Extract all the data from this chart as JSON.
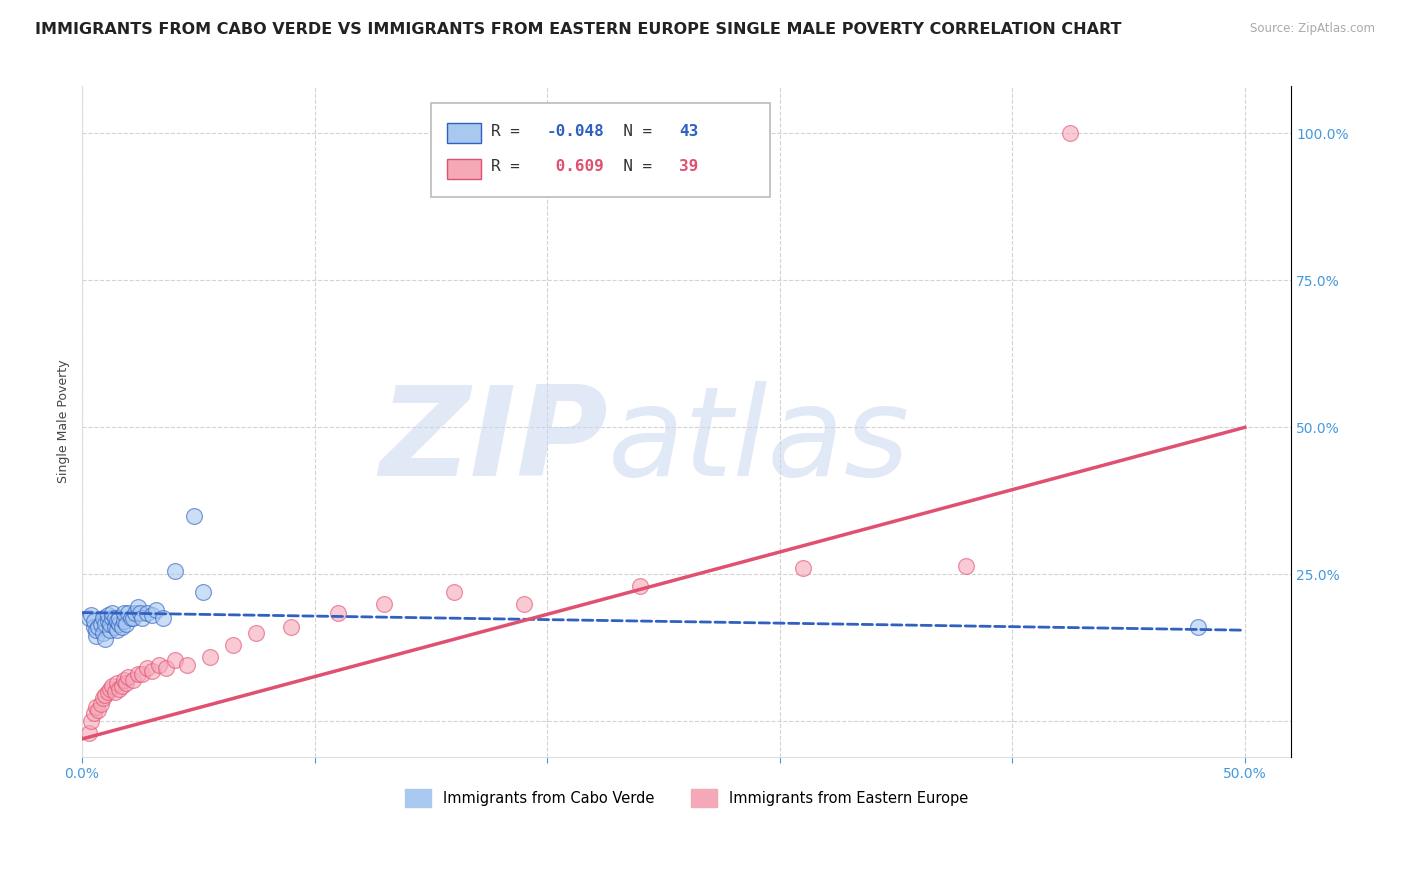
{
  "title": "IMMIGRANTS FROM CABO VERDE VS IMMIGRANTS FROM EASTERN EUROPE SINGLE MALE POVERTY CORRELATION CHART",
  "source": "Source: ZipAtlas.com",
  "ylabel": "Single Male Poverty",
  "xlim": [
    0.0,
    0.52
  ],
  "ylim": [
    -0.06,
    1.08
  ],
  "background_color": "#FFFFFF",
  "grid_color": "#CCCCCC",
  "series1_color": "#A8C8F0",
  "series2_color": "#F5A8B8",
  "line1_color": "#3060C0",
  "line2_color": "#E05070",
  "tick_color": "#4499DD",
  "cabo_verde_x": [
    0.003,
    0.004,
    0.005,
    0.005,
    0.006,
    0.006,
    0.007,
    0.008,
    0.009,
    0.009,
    0.01,
    0.01,
    0.011,
    0.011,
    0.012,
    0.012,
    0.013,
    0.013,
    0.014,
    0.014,
    0.015,
    0.015,
    0.016,
    0.016,
    0.017,
    0.018,
    0.018,
    0.019,
    0.02,
    0.021,
    0.022,
    0.023,
    0.024,
    0.025,
    0.026,
    0.028,
    0.03,
    0.032,
    0.035,
    0.04,
    0.048,
    0.052,
    0.48
  ],
  "cabo_verde_y": [
    0.175,
    0.18,
    0.16,
    0.17,
    0.145,
    0.155,
    0.16,
    0.165,
    0.15,
    0.175,
    0.14,
    0.165,
    0.17,
    0.18,
    0.155,
    0.165,
    0.175,
    0.185,
    0.16,
    0.175,
    0.155,
    0.17,
    0.165,
    0.175,
    0.16,
    0.17,
    0.185,
    0.165,
    0.185,
    0.175,
    0.175,
    0.185,
    0.195,
    0.185,
    0.175,
    0.185,
    0.18,
    0.19,
    0.175,
    0.255,
    0.35,
    0.22,
    0.16
  ],
  "eastern_europe_x": [
    0.003,
    0.004,
    0.005,
    0.006,
    0.007,
    0.008,
    0.009,
    0.01,
    0.011,
    0.012,
    0.013,
    0.014,
    0.015,
    0.016,
    0.017,
    0.018,
    0.019,
    0.02,
    0.022,
    0.024,
    0.026,
    0.028,
    0.03,
    0.033,
    0.036,
    0.04,
    0.045,
    0.055,
    0.065,
    0.075,
    0.09,
    0.11,
    0.13,
    0.16,
    0.19,
    0.24,
    0.31,
    0.38,
    0.425
  ],
  "eastern_europe_y": [
    -0.02,
    0.0,
    0.015,
    0.025,
    0.02,
    0.03,
    0.04,
    0.045,
    0.05,
    0.055,
    0.06,
    0.05,
    0.065,
    0.055,
    0.06,
    0.07,
    0.065,
    0.075,
    0.07,
    0.08,
    0.08,
    0.09,
    0.085,
    0.095,
    0.09,
    0.105,
    0.095,
    0.11,
    0.13,
    0.15,
    0.16,
    0.185,
    0.2,
    0.22,
    0.2,
    0.23,
    0.26,
    0.265,
    1.0
  ],
  "R1": "-0.048",
  "N1": "43",
  "R2": "0.609",
  "N2": "39",
  "legend1_series": "Immigrants from Cabo Verde",
  "legend2_series": "Immigrants from Eastern Europe",
  "title_fontsize": 11.5,
  "axis_label_fontsize": 9,
  "tick_fontsize": 10,
  "marker_size": 130,
  "marker_alpha": 0.6
}
